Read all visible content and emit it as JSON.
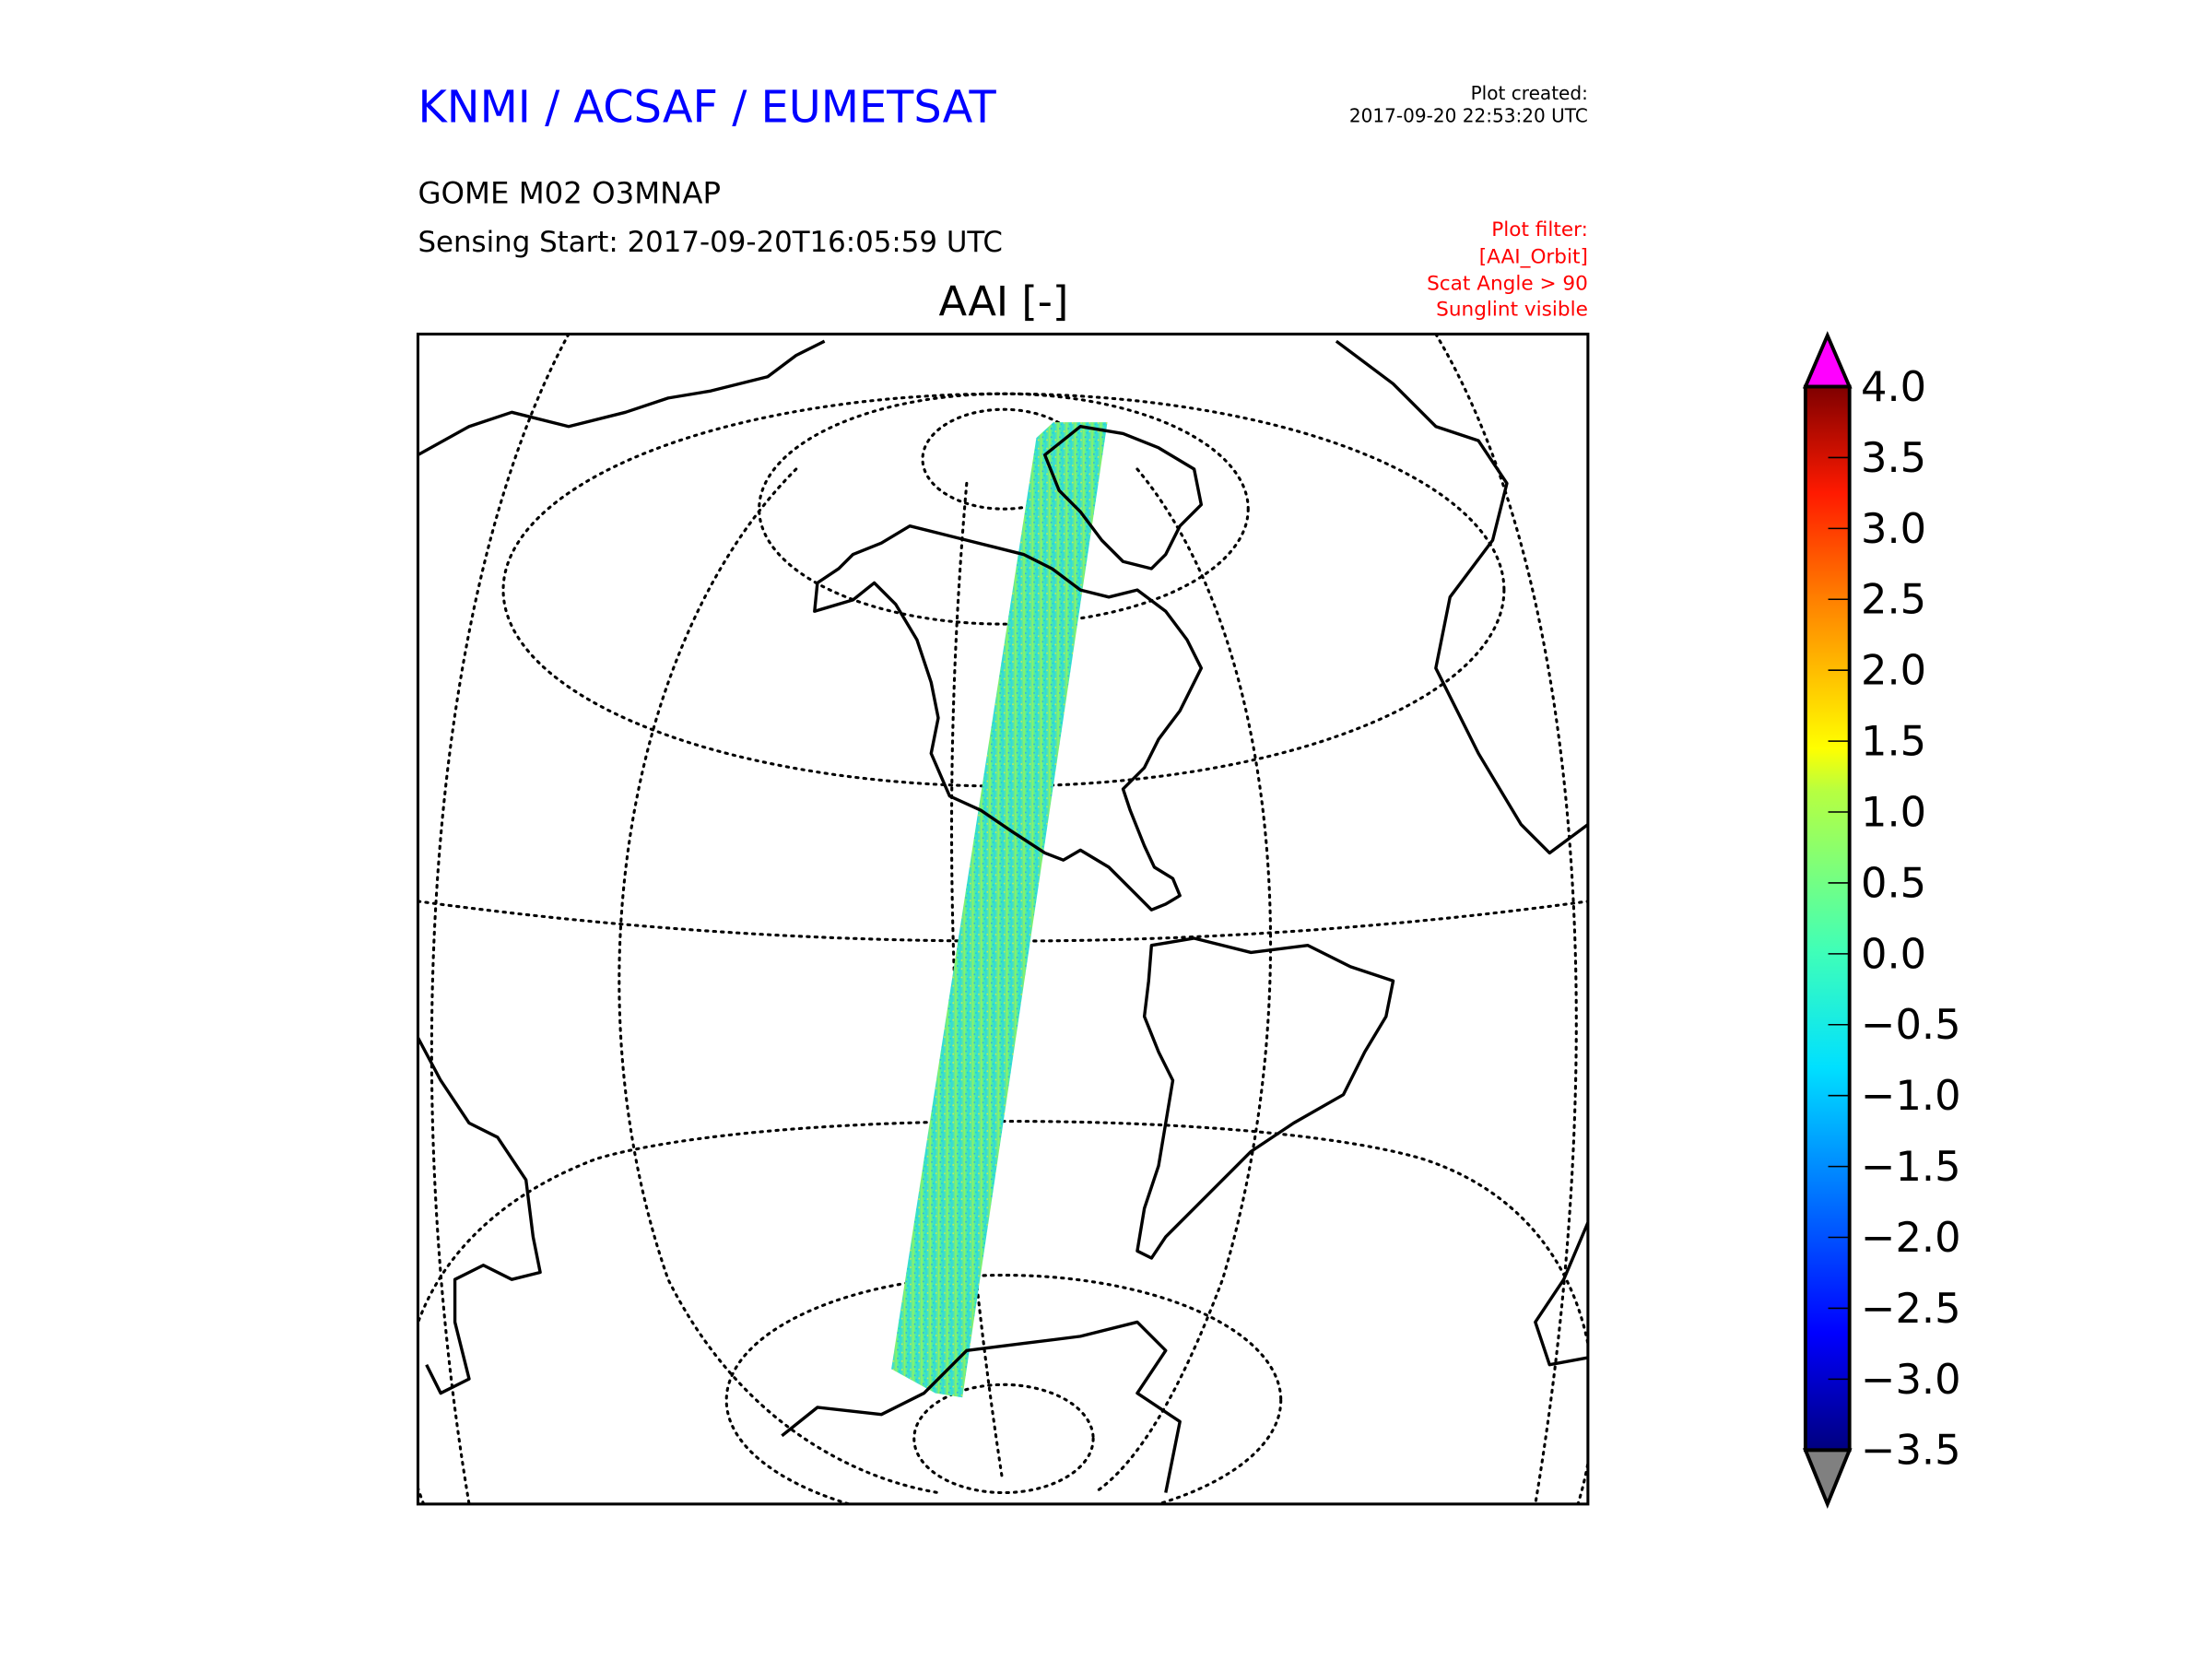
{
  "header": {
    "org_title": "KNMI / ACSAF / EUMETSAT",
    "product": "GOME M02 O3MNAP",
    "sensing_start": "Sensing Start: 2017-09-20T16:05:59 UTC",
    "plot_created_label": "Plot created:",
    "plot_created_time": "2017-09-20 22:53:20 UTC",
    "filter_lines": [
      "Plot filter:",
      "[AAI_Orbit]",
      "Scat Angle > 90",
      "Sunglint visible"
    ]
  },
  "colors": {
    "title": "#0000ff",
    "filter": "#ff0000",
    "over": "#ff00ff",
    "under": "#808080"
  },
  "chart_data": {
    "type": "heatmap",
    "title": "AAI [-]",
    "projection": "orthographic (Americas)",
    "colorbar": {
      "min": -3.5,
      "max": 4.0,
      "colormap": "jet",
      "extend": "both",
      "ticks": [
        4.0,
        3.5,
        3.0,
        2.5,
        2.0,
        1.5,
        1.0,
        0.5,
        0.0,
        -0.5,
        -1.0,
        -1.5,
        -2.0,
        -2.5,
        -3.0,
        -3.5
      ],
      "tick_labels": [
        "4.0",
        "3.5",
        "3.0",
        "2.5",
        "2.0",
        "1.5",
        "1.0",
        "0.5",
        "0.0",
        "−0.5",
        "−1.0",
        "−1.5",
        "−2.0",
        "−2.5",
        "−3.0",
        "−3.5"
      ]
    },
    "swath": {
      "description_value_range": [
        -1.5,
        1.5
      ],
      "typical_value": -0.3
    }
  }
}
